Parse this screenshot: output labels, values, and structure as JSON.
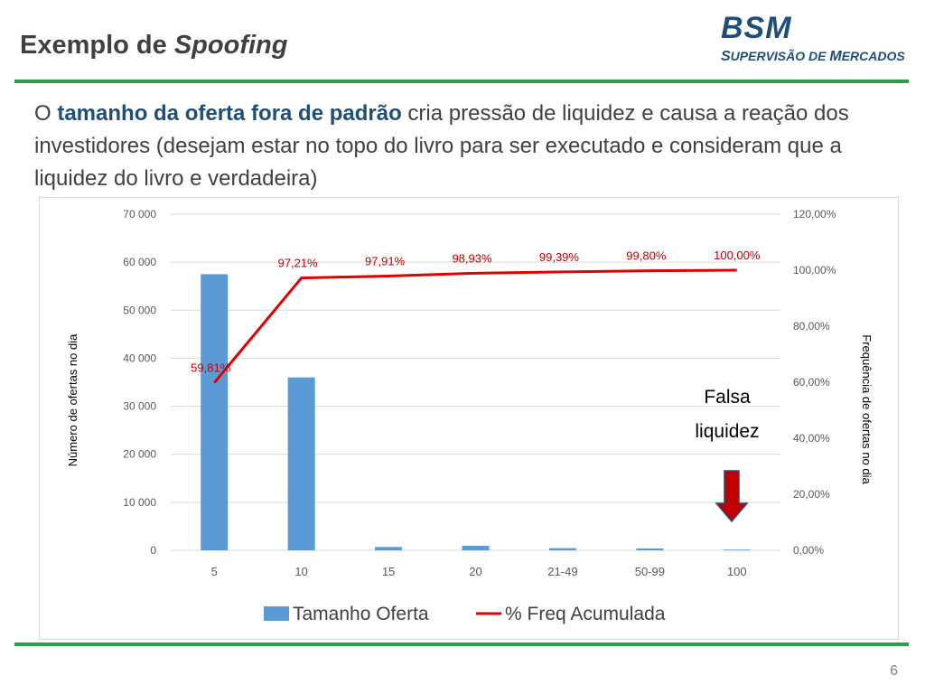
{
  "slide": {
    "title_prefix": "Exemplo de ",
    "title_emph": "Spoofing",
    "logo_main": "BSM",
    "logo_sub_s": "S",
    "logo_sub_rest1": "UPERVISÃO DE ",
    "logo_sub_m": "M",
    "logo_sub_rest2": "ERCADOS",
    "intro_pre": "O ",
    "intro_highlight": "tamanho da oferta fora de padrão",
    "intro_post": " cria pressão de liquidez e causa a reação dos investidores (desejam estar no topo do livro para ser executado e consideram que a liquidez do livro e verdadeira)",
    "page_number": "6"
  },
  "colors": {
    "bar": "#5b9bd5",
    "line": "#e00000",
    "label_red": "#c00000",
    "accent_green": "#2e9e47",
    "brand_blue": "#1f4e79",
    "arrow": "#c00000"
  },
  "chart_data": {
    "type": "bar",
    "categories": [
      "5",
      "10",
      "15",
      "20",
      "21-49",
      "50-99",
      "100"
    ],
    "series": [
      {
        "name": "Tamanho Oferta",
        "type": "bar",
        "axis": "left",
        "values": [
          57500,
          36000,
          700,
          950,
          450,
          400,
          150
        ]
      },
      {
        "name": "% Freq Acumulada",
        "type": "line",
        "axis": "right",
        "values": [
          59.81,
          97.21,
          97.91,
          98.93,
          99.39,
          99.8,
          100.0
        ],
        "labels": [
          "59,81%",
          "97,21%",
          "97,91%",
          "98,93%",
          "99,39%",
          "99,80%",
          "100,00%"
        ]
      }
    ],
    "ylabel": "Número de ofertas no dia",
    "y2label": "Frequência de ofertas no dia",
    "ylim": [
      0,
      70000
    ],
    "y_ticks": [
      0,
      10000,
      20000,
      30000,
      40000,
      50000,
      60000,
      70000
    ],
    "y_tick_labels": [
      "0",
      "10 000",
      "20 000",
      "30 000",
      "40 000",
      "50 000",
      "60 000",
      "70 000"
    ],
    "y2lim": [
      0,
      120
    ],
    "y2_ticks": [
      0,
      20,
      40,
      60,
      80,
      100,
      120
    ],
    "y2_tick_labels": [
      "0,00%",
      "20,00%",
      "40,00%",
      "60,00%",
      "80,00%",
      "100,00%",
      "120,00%"
    ],
    "grid": true,
    "legend_position": "bottom",
    "annotation_line1": "Falsa",
    "annotation_line2": "liquidez",
    "annotation_icon": "down-arrow-icon"
  }
}
